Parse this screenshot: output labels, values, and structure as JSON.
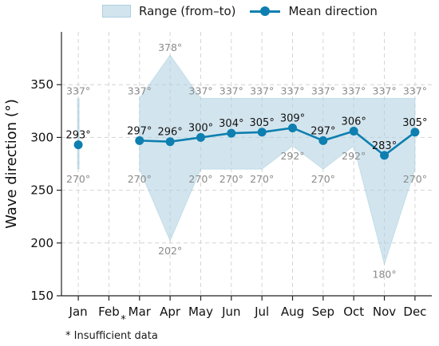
{
  "legend": {
    "range_label": "Range (from–to)",
    "mean_label": "Mean direction"
  },
  "footnote": "* Insufficient data",
  "chart_data": {
    "type": "line",
    "ylabel": "Wave direction (°)",
    "xlabel": "",
    "categories": [
      "Jan",
      "Feb",
      "Mar",
      "Apr",
      "May",
      "Jun",
      "Jul",
      "Aug",
      "Sep",
      "Oct",
      "Nov",
      "Dec"
    ],
    "insufficient_marker": {
      "category": "Feb",
      "text": "*"
    },
    "ylim": [
      150,
      400
    ],
    "yticks": [
      150,
      200,
      250,
      300,
      350
    ],
    "grid": true,
    "legend_position": "top",
    "colors": {
      "mean": "#0e7fb0",
      "range_fill": "#add0e0",
      "label_grey": "#8a8a8a"
    },
    "series": [
      {
        "name": "Mean direction",
        "type": "line",
        "values": [
          293,
          null,
          297,
          296,
          300,
          304,
          305,
          309,
          297,
          306,
          283,
          305
        ],
        "labels": [
          "293°",
          "",
          "297°",
          "296°",
          "300°",
          "304°",
          "305°",
          "309°",
          "297°",
          "306°",
          "283°",
          "305°"
        ]
      },
      {
        "name": "Range (from–to)",
        "type": "area",
        "upper": [
          337,
          null,
          337,
          378,
          337,
          337,
          337,
          337,
          337,
          337,
          337,
          337
        ],
        "lower": [
          270,
          null,
          270,
          202,
          270,
          270,
          270,
          292,
          270,
          292,
          180,
          270
        ],
        "upper_labels": [
          "337°",
          "",
          "337°",
          "378°",
          "337°",
          "337°",
          "337°",
          "337°",
          "337°",
          "337°",
          "337°",
          "337°"
        ],
        "lower_labels": [
          "270°",
          "",
          "270°",
          "202°",
          "270°",
          "270°",
          "270°",
          "292°",
          "270°",
          "292°",
          "180°",
          "270°"
        ]
      }
    ]
  }
}
